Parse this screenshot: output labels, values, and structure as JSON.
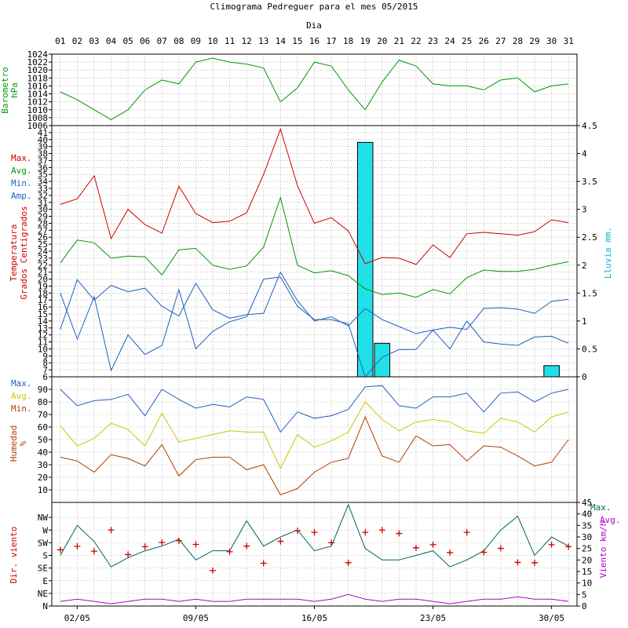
{
  "title": "Climograma Pedreguer para el mes 05/2015",
  "day_axis_label": "Dia",
  "days": [
    "01",
    "02",
    "03",
    "04",
    "05",
    "06",
    "07",
    "08",
    "09",
    "10",
    "11",
    "12",
    "13",
    "14",
    "15",
    "16",
    "17",
    "18",
    "19",
    "20",
    "21",
    "22",
    "23",
    "24",
    "25",
    "26",
    "27",
    "28",
    "29",
    "30",
    "31"
  ],
  "bottom_dates": [
    {
      "day": 2,
      "label": "02/05"
    },
    {
      "day": 9,
      "label": "09/05"
    },
    {
      "day": 16,
      "label": "16/05"
    },
    {
      "day": 23,
      "label": "23/05"
    },
    {
      "day": 30,
      "label": "30/05"
    }
  ],
  "colors": {
    "red": "#cc0000",
    "green": "#009900",
    "blue": "#1f5fbf",
    "cyan": "#22e0e8",
    "yellow": "#c8c800",
    "brown": "#b04000",
    "teal": "#006655",
    "magenta": "#aa00cc",
    "grid": "#999999"
  },
  "chart_data": [
    {
      "type": "line",
      "panel": "pressure",
      "ylabel": [
        "Barometro",
        "hPa"
      ],
      "ylim": [
        1006,
        1024
      ],
      "yticks": [
        1006,
        1008,
        1010,
        1012,
        1014,
        1016,
        1018,
        1020,
        1022,
        1024
      ],
      "series": [
        {
          "values": [
            1014.5,
            1012.5,
            1010,
            1007.5,
            1010,
            1015,
            1017.5,
            1016.5,
            1022,
            1023,
            1022,
            1021.5,
            1020.5,
            1012,
            1015.5,
            1022,
            1021,
            1015,
            1010,
            1017,
            1022.5,
            1021,
            1016.5,
            1016,
            1016,
            1015,
            1017.5,
            1018,
            1014.5,
            1016,
            1016.5
          ]
        }
      ]
    },
    {
      "type": "line",
      "panel": "temperature",
      "ylabel": [
        "Temperatura",
        "Grados Centigrados"
      ],
      "ylim": [
        6,
        42
      ],
      "yticks": [
        6,
        7,
        8,
        9,
        10,
        11,
        12,
        13,
        14,
        15,
        16,
        17,
        18,
        19,
        20,
        21,
        22,
        23,
        24,
        25,
        26,
        27,
        28,
        29,
        30,
        31,
        32,
        33,
        34,
        35,
        36,
        37,
        38,
        39,
        40,
        41
      ],
      "legend": [
        "Max.",
        "Avg.",
        "Min.",
        "Amp."
      ],
      "series": [
        {
          "name": "Max.",
          "values": [
            30.7,
            31.5,
            34.8,
            25.8,
            30,
            27.8,
            26.6,
            33.3,
            29.4,
            28.1,
            28.3,
            29.5,
            35,
            41.5,
            33.4,
            28,
            28.8,
            26.9,
            22.2,
            23.1,
            23,
            22.1,
            24.9,
            23.1,
            26.5,
            26.7,
            26.5,
            26.3,
            26.8,
            28.5,
            28.1
          ]
        },
        {
          "name": "Avg.",
          "values": [
            22.3,
            25.6,
            25.2,
            23,
            23.3,
            23.2,
            20.6,
            24.2,
            24.4,
            22,
            21.4,
            21.9,
            24.6,
            31.7,
            22,
            20.9,
            21.2,
            20.5,
            18.6,
            17.8,
            18,
            17.4,
            18.5,
            17.9,
            20.2,
            21.3,
            21.1,
            21.1,
            21.4,
            22,
            22.5
          ]
        },
        {
          "name": "Min.",
          "values": [
            18,
            11.4,
            17.5,
            6.9,
            12,
            9.2,
            10.5,
            18.5,
            10,
            12.5,
            13.9,
            14.6,
            20,
            20.3,
            16.1,
            14.2,
            14.2,
            13.6,
            6,
            8.8,
            9.9,
            9.9,
            12.7,
            10,
            14,
            11,
            10.7,
            10.5,
            11.7,
            11.8,
            10.8
          ]
        },
        {
          "name": "Amp.",
          "values": [
            12.8,
            19.9,
            17,
            19.1,
            18.2,
            18.7,
            16.1,
            14.7,
            19.4,
            15.6,
            14.4,
            14.9,
            15.1,
            21,
            16.9,
            14,
            14.6,
            13.3,
            15.8,
            14.2,
            13.2,
            12.2,
            12.7,
            13.1,
            12.8,
            15.8,
            15.9,
            15.7,
            15.1,
            16.8,
            17.1
          ]
        }
      ]
    },
    {
      "type": "bar",
      "panel": "rain",
      "ylabel": "Lluvia mm.",
      "ylim": [
        0,
        4.5
      ],
      "yticks": [
        0,
        0.5,
        1,
        1.5,
        2,
        2.5,
        3,
        3.5,
        4,
        4.5
      ],
      "bars": [
        {
          "day": 19,
          "value": 4.2
        },
        {
          "day": 20,
          "value": 0.6
        },
        {
          "day": 30,
          "value": 0.2
        }
      ]
    },
    {
      "type": "line",
      "panel": "humidity",
      "ylabel": [
        "Humedad",
        "%"
      ],
      "ylim": [
        0,
        100
      ],
      "yticks": [
        10,
        20,
        30,
        40,
        50,
        60,
        70,
        80,
        90
      ],
      "legend": [
        "Max.",
        "Avg.",
        "Min."
      ],
      "series": [
        {
          "name": "Max.",
          "values": [
            90,
            77,
            81,
            82,
            86,
            69,
            90,
            82,
            75,
            78,
            76,
            84,
            82,
            56,
            72,
            67,
            69,
            74,
            92,
            93,
            77,
            75,
            84,
            84,
            87,
            72,
            87,
            88,
            80,
            87,
            90
          ]
        },
        {
          "name": "Avg.",
          "values": [
            61,
            45,
            51,
            63,
            58,
            45,
            71,
            48,
            51,
            54,
            57,
            56,
            56,
            27,
            54,
            44,
            49,
            56,
            80,
            66,
            57,
            64,
            66,
            64,
            57,
            55,
            67,
            64,
            56,
            68,
            72
          ]
        },
        {
          "name": "Min.",
          "values": [
            36,
            33,
            24,
            38,
            35,
            29,
            46,
            21,
            34,
            36,
            36,
            26,
            30,
            6,
            11,
            24,
            32,
            35,
            68,
            37,
            32,
            53,
            45,
            46,
            33,
            45,
            44,
            37,
            29,
            32,
            50
          ]
        }
      ]
    },
    {
      "type": "scatter",
      "panel": "wind",
      "ylabel_left": "Dir. viento",
      "ylabel_right": "Viento km/h",
      "directions": [
        "N",
        "NE",
        "E",
        "SE",
        "S",
        "SW",
        "W",
        "NW"
      ],
      "speed_ylim": [
        0,
        45
      ],
      "speed_yticks": [
        0,
        5,
        10,
        15,
        20,
        25,
        30,
        35,
        40,
        45
      ],
      "legend": [
        "Max.",
        "Avg."
      ],
      "direction_points_deg": [
        200,
        212,
        195,
        270,
        183,
        211,
        226,
        232,
        219,
        126,
        193,
        213,
        152,
        230,
        268,
        262,
        225,
        154,
        262,
        270,
        258,
        207,
        218,
        190,
        262,
        191,
        205,
        155,
        154,
        218,
        211
      ],
      "series": [
        {
          "name": "Max.",
          "values": [
            22,
            35,
            28,
            17,
            21,
            24,
            26,
            29,
            20,
            24,
            24,
            37,
            26,
            30,
            33,
            24,
            26,
            44,
            25,
            20,
            20,
            22,
            24,
            17,
            20,
            24,
            33,
            39,
            22,
            30,
            26
          ]
        },
        {
          "name": "Avg.",
          "values": [
            2,
            3,
            2,
            1,
            2,
            3,
            3,
            2,
            3,
            2,
            2,
            3,
            3,
            3,
            3,
            2,
            3,
            5,
            3,
            2,
            3,
            3,
            2,
            1,
            2,
            3,
            3,
            4,
            3,
            3,
            2
          ]
        }
      ]
    }
  ]
}
